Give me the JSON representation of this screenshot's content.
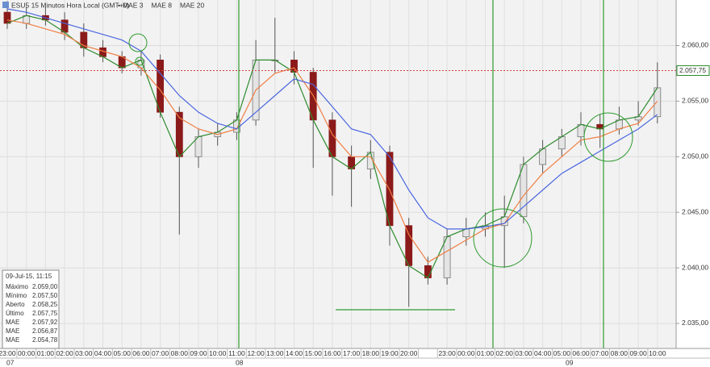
{
  "chart_data": {
    "type": "candlestick",
    "title": "ESU5 15 Minutos Hora Local (GMT+0)",
    "categories": [
      "23:00",
      "00:00",
      "01:00",
      "02:00",
      "03:00",
      "04:00",
      "05:00",
      "06:00",
      "07:00",
      "08:00",
      "09:00",
      "10:00",
      "11:00",
      "12:00",
      "13:00",
      "14:00",
      "15:00",
      "16:00",
      "17:00",
      "18:00",
      "19:00",
      "20:00",
      null,
      "23:00",
      "00:00",
      "01:00",
      "02:00",
      "03:00",
      "04:00",
      "05:00",
      "06:00",
      "07:00",
      "08:00",
      "09:00",
      "10:00"
    ],
    "day_labels": [
      "07",
      "08",
      "09"
    ],
    "open": [
      2063,
      2062,
      2062.7,
      2062.3,
      2061.2,
      2059.8,
      2059,
      2058,
      2058.7,
      2054,
      2050,
      2051.8,
      2052.2,
      2053.3,
      2058.7,
      2058.7,
      2057.6,
      2053.3,
      2050,
      2048.9,
      2050.4,
      2043.8,
      2040.2,
      2039.1,
      2042.8,
      2043.5,
      2043.8,
      2044.6,
      2049.3,
      2050.7,
      2051.8,
      2052.9,
      2052.5,
      2053.3,
      2053.6
    ],
    "high": [
      2064,
      2063.5,
      2063.5,
      2063,
      2062,
      2060.5,
      2059.5,
      2059.5,
      2059.2,
      2054.5,
      2052.5,
      2053,
      2054,
      2060.5,
      2062.5,
      2059.5,
      2058,
      2054,
      2051,
      2051.5,
      2051,
      2044.5,
      2041,
      2043.5,
      2044.5,
      2045,
      2046.5,
      2050,
      2051.5,
      2052.5,
      2054,
      2053.8,
      2054.5,
      2055,
      2058.5
    ],
    "low": [
      2061.5,
      2061.5,
      2061.8,
      2060.5,
      2059,
      2058.5,
      2057.5,
      2057.3,
      2053.5,
      2043,
      2049,
      2051,
      2051.5,
      2052.8,
      2057.5,
      2056.5,
      2049,
      2046.5,
      2045.5,
      2048,
      2042,
      2036.5,
      2038.5,
      2038.5,
      2042,
      2042.8,
      2040,
      2044,
      2048.5,
      2050,
      2051,
      2050.8,
      2052,
      2052.8,
      2053
    ],
    "close": [
      2062,
      2062.7,
      2062.3,
      2061.2,
      2059.8,
      2059,
      2058,
      2058.7,
      2054,
      2050,
      2051.8,
      2052.2,
      2053.3,
      2058.7,
      2058.7,
      2057.6,
      2053.3,
      2050,
      2048.9,
      2050.4,
      2043.8,
      2040.2,
      2039.1,
      2042.8,
      2043.5,
      2043.8,
      2044.6,
      2049.3,
      2050.7,
      2051.8,
      2052.9,
      2052.5,
      2053.3,
      2053.6,
      2056.2
    ],
    "up_color": "#e4e4e4",
    "down_color": "#8b1a1a",
    "series": [
      {
        "name": "MAE 3",
        "color": "#2e8b2e",
        "values": [
          2062,
          2062.7,
          2062.3,
          2061.2,
          2059.8,
          2059,
          2058,
          2058.7,
          2054,
          2050,
          2051.8,
          2052.2,
          2053.3,
          2058.7,
          2058.7,
          2057.6,
          2053.3,
          2050,
          2048.9,
          2050.4,
          2043.8,
          2040.2,
          2039.1,
          2042.8,
          2043.5,
          2043.8,
          2044.6,
          2049.3,
          2050.7,
          2051.8,
          2052.9,
          2052.5,
          2053.3,
          2053.6,
          2056.2
        ]
      },
      {
        "name": "MAE 8",
        "color": "#f07f45",
        "values": [
          2062.3,
          2062,
          2061.5,
          2061,
          2060,
          2059.5,
          2059,
          2058,
          2056,
          2053.5,
          2052.5,
          2052,
          2052.5,
          2056,
          2057.5,
          2058,
          2055.5,
          2052,
          2050,
          2050,
          2047,
          2043,
          2040.5,
          2041.5,
          2042.5,
          2043.5,
          2044,
          2046.5,
          2048.5,
          2050,
          2051.5,
          2051.8,
          2052.5,
          2053,
          2055
        ]
      },
      {
        "name": "MAE 20",
        "color": "#4a66e0",
        "values": [
          2063.3,
          2063,
          2062.5,
          2062,
          2061.5,
          2061,
          2060.5,
          2059.5,
          2057.5,
          2055.5,
          2054,
          2053,
          2052.5,
          2054,
          2055.5,
          2057,
          2056.5,
          2054.5,
          2052.5,
          2052,
          2050,
          2047,
          2044.5,
          2043.5,
          2043.5,
          2043.7,
          2044,
          2045.5,
          2047,
          2048.5,
          2049.5,
          2050.5,
          2051.5,
          2052.5,
          2053.8
        ]
      }
    ],
    "ylim": [
      2032.75,
      2064.1
    ],
    "yticks": [
      {
        "value": 2035,
        "label": "2.035,00"
      },
      {
        "value": 2040,
        "label": "2.040,00"
      },
      {
        "value": 2045,
        "label": "2.045,00"
      },
      {
        "value": 2050,
        "label": "2.050,00"
      },
      {
        "value": 2055,
        "label": "2.055,00"
      },
      {
        "value": 2060,
        "label": "2.060,00"
      }
    ],
    "grid": true,
    "current_price": {
      "value": 2057.75,
      "label": "2.057,75"
    },
    "info_panel": {
      "title": "09-Jul-15, 11:15",
      "rows": [
        {
          "label": "Máximo",
          "value": "2.059,00"
        },
        {
          "label": "Mínimo",
          "value": "2.057,50"
        },
        {
          "label": "Aberto",
          "value": "2.058,25"
        },
        {
          "label": "Último",
          "value": "2.057,75"
        },
        {
          "label": "MAE",
          "value": "2.057,92"
        },
        {
          "label": "MAE",
          "value": "2.056,87"
        },
        {
          "label": "MAE",
          "value": "2.054,78"
        }
      ]
    }
  }
}
